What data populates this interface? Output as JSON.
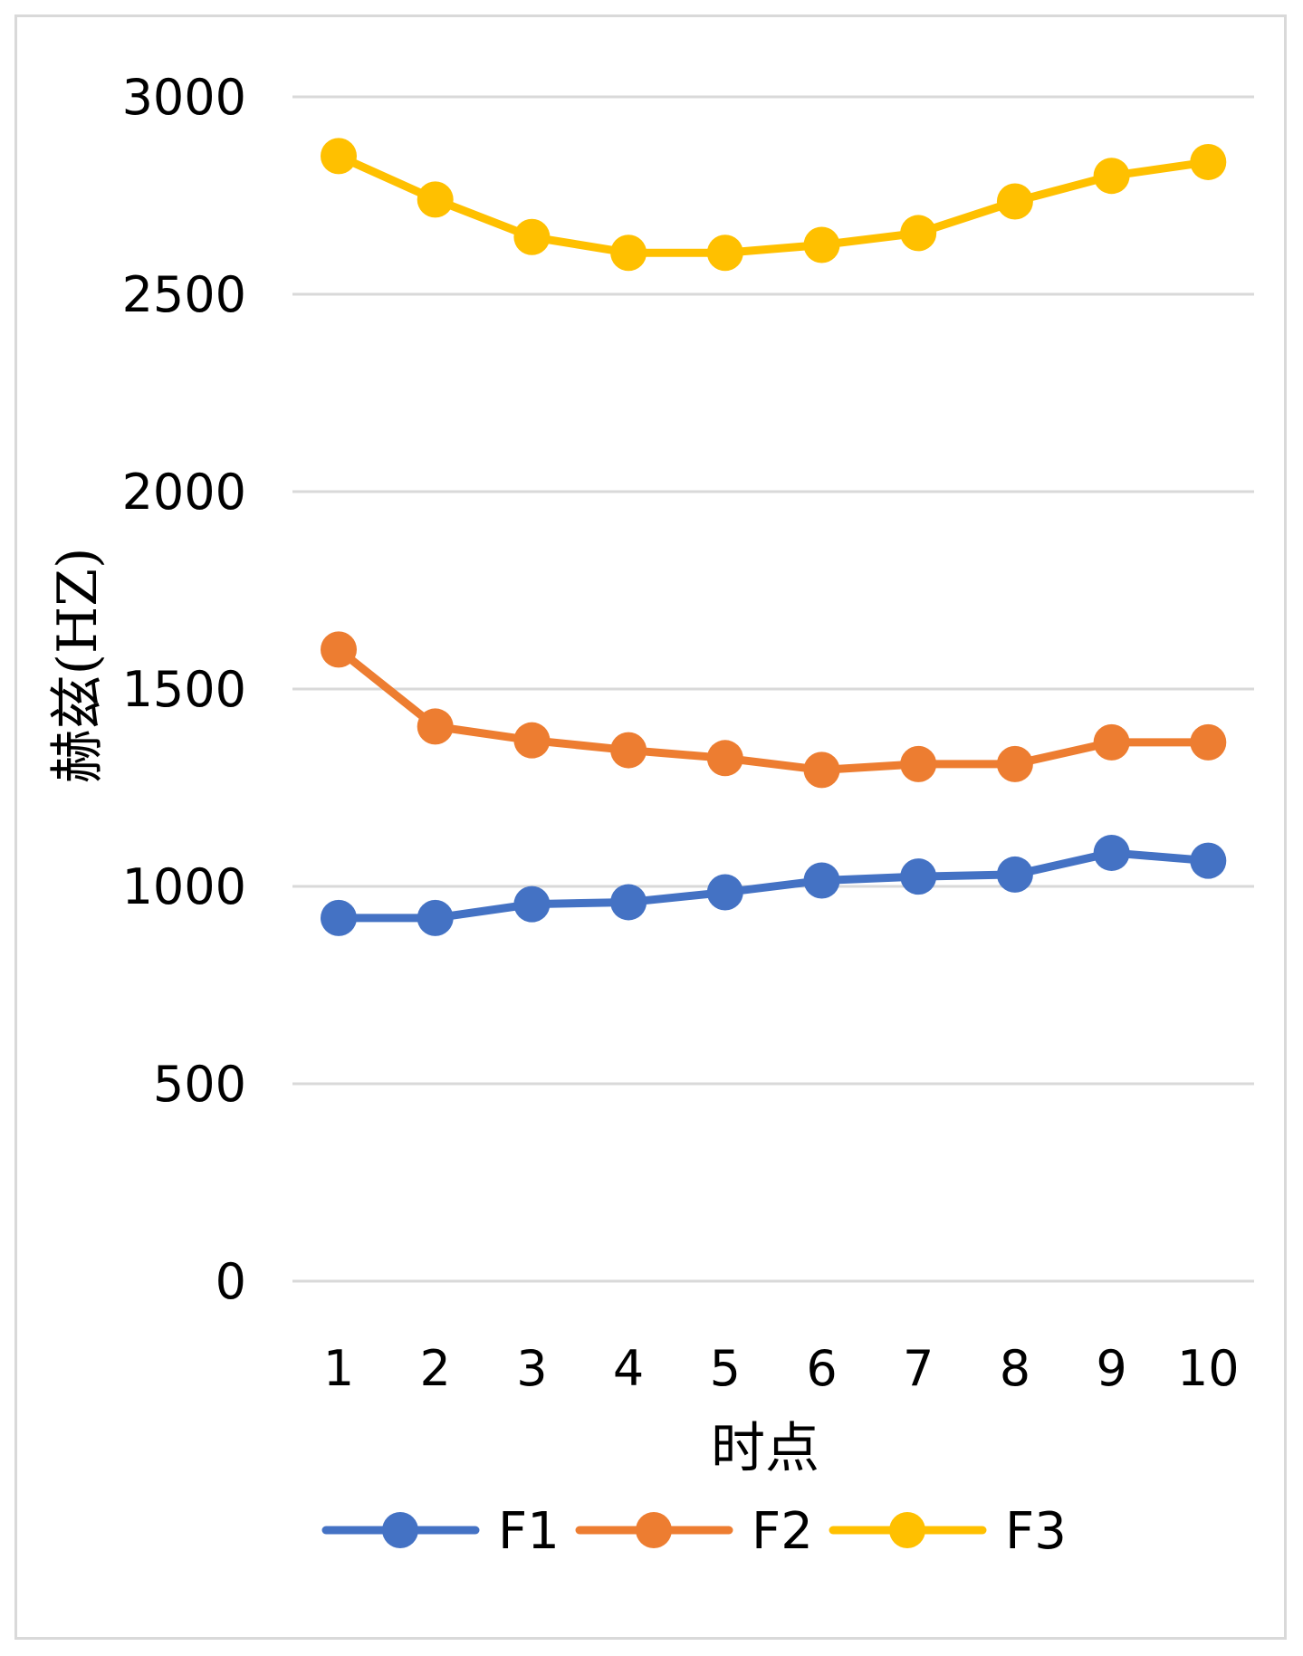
{
  "chart_data": {
    "type": "line",
    "title": "",
    "xlabel": "时点",
    "ylabel": "赫兹(HZ)",
    "x": [
      1,
      2,
      3,
      4,
      5,
      6,
      7,
      8,
      9,
      10
    ],
    "x_tick_labels": [
      "1",
      "2",
      "3",
      "4",
      "5",
      "6",
      "7",
      "8",
      "9",
      "10"
    ],
    "y_tick_labels": [
      "0",
      "500",
      "1000",
      "1500",
      "2000",
      "2500",
      "3000"
    ],
    "y_ticks": [
      0,
      500,
      1000,
      1500,
      2000,
      2500,
      3000
    ],
    "ylim": [
      0,
      3000
    ],
    "grid": true,
    "legend_position": "bottom",
    "series": [
      {
        "name": "F1",
        "color": "#4472C4",
        "values": [
          920,
          920,
          955,
          960,
          985,
          1015,
          1025,
          1030,
          1085,
          1065
        ]
      },
      {
        "name": "F2",
        "color": "#ED7D31",
        "values": [
          1600,
          1405,
          1370,
          1345,
          1325,
          1295,
          1310,
          1310,
          1365,
          1365
        ]
      },
      {
        "name": "F3",
        "color": "#FFC000",
        "values": [
          2850,
          2740,
          2645,
          2605,
          2605,
          2625,
          2655,
          2735,
          2800,
          2835
        ]
      }
    ]
  }
}
